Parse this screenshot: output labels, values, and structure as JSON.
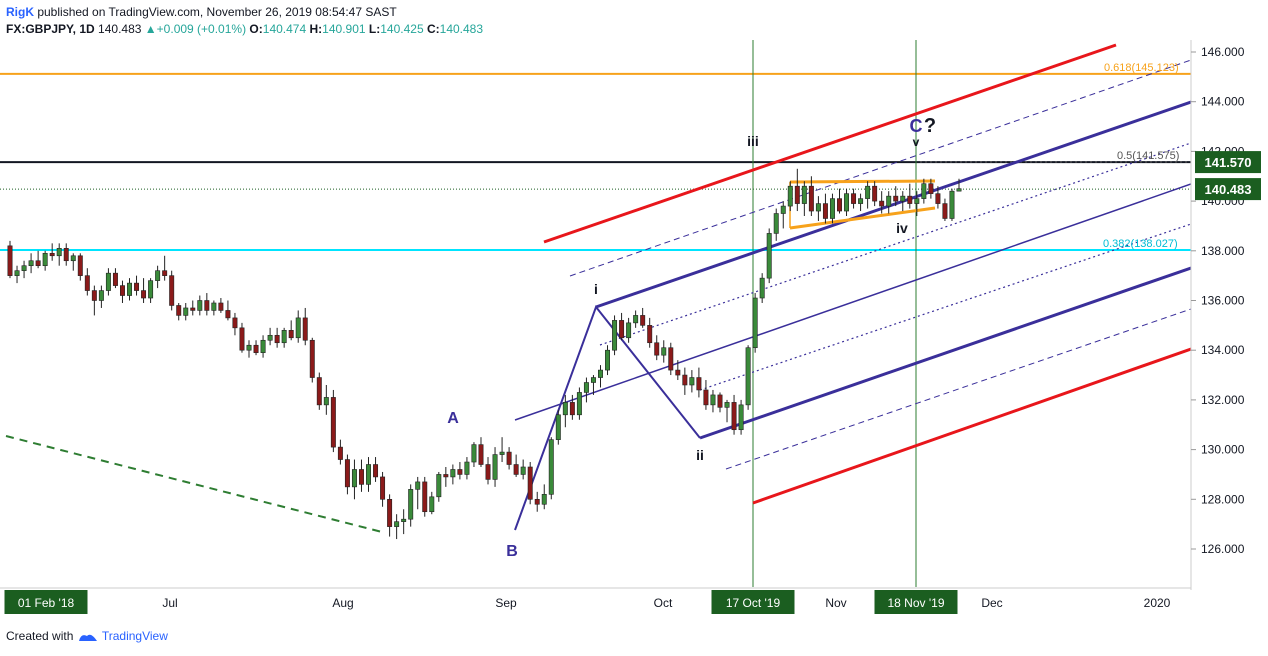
{
  "header": {
    "author": "RigK",
    "published": " published on TradingView.com, November 26, 2019 08:54:47 SAST",
    "symbol": "FX:GBPJPY, 1D",
    "last": "140.483",
    "change_arrow": "▲",
    "change": "+0.009 (+0.01%)",
    "o_label": "O:",
    "o": "140.474",
    "h_label": "H:",
    "h": "140.901",
    "l_label": "L:",
    "l": "140.425",
    "c_label": "C:",
    "c": "140.483"
  },
  "footer": {
    "created_with": "Created with",
    "brand": "TradingView"
  },
  "colors": {
    "bull": "#3a8a3a",
    "bear": "#8b1a1a",
    "channel_red": "#e8161b",
    "pitchfork": "#3a2f9a",
    "fib_orange": "#f7a21b",
    "fib_cyan": "#00e5ff",
    "vline_green": "#2e7d32",
    "last_price": "#1b5e20"
  },
  "chart_data": {
    "type": "candlestick",
    "symbol": "FX:GBPJPY",
    "timeframe": "1D",
    "ylim": [
      124.4,
      146.9
    ],
    "y_ticks": [
      126,
      128,
      130,
      132,
      134,
      136,
      138,
      140,
      142,
      144,
      146
    ],
    "y_tick_labels": [
      "126.000",
      "128.000",
      "130.000",
      "132.000",
      "134.000",
      "136.000",
      "138.000",
      "140.000",
      "142.000",
      "144.000",
      "146.000"
    ],
    "x_labels": [
      "01 Feb '18",
      "Jul",
      "Aug",
      "Sep",
      "Oct",
      "17 Oct '19",
      "Nov",
      "18 Nov '19",
      "Dec",
      "2020"
    ],
    "highlighted_x_labels": [
      "01 Feb '18",
      "17 Oct '19",
      "18 Nov '19"
    ],
    "price_labels": [
      {
        "text": "141.570",
        "value": 141.57,
        "style": "black-line"
      },
      {
        "text": "140.483",
        "value": 140.483,
        "style": "last-price"
      }
    ],
    "fib_levels": [
      {
        "label": "0.618(145.123)",
        "value": 145.12,
        "color": "orange"
      },
      {
        "label": "0.5(141.575)",
        "value": 141.575,
        "color": "black"
      },
      {
        "label": "0.382(138.027)",
        "value": 138.03,
        "color": "cyan"
      }
    ],
    "wave_labels": [
      "A",
      "B",
      "i",
      "ii",
      "iii",
      "iv",
      "C",
      "?",
      "v"
    ],
    "candles_ohlc": [
      [
        138.2,
        138.4,
        136.9,
        137.0
      ],
      [
        137.0,
        137.4,
        136.7,
        137.2
      ],
      [
        137.2,
        137.6,
        136.9,
        137.4
      ],
      [
        137.4,
        137.9,
        137.1,
        137.6
      ],
      [
        137.6,
        138.0,
        137.3,
        137.4
      ],
      [
        137.4,
        138.0,
        137.2,
        137.9
      ],
      [
        137.9,
        138.3,
        137.6,
        137.8
      ],
      [
        137.8,
        138.3,
        137.4,
        138.1
      ],
      [
        138.1,
        138.3,
        137.4,
        137.6
      ],
      [
        137.6,
        137.9,
        137.2,
        137.8
      ],
      [
        137.8,
        137.9,
        136.8,
        137.0
      ],
      [
        137.0,
        137.3,
        136.2,
        136.4
      ],
      [
        136.4,
        136.6,
        135.4,
        136.0
      ],
      [
        136.0,
        136.6,
        135.7,
        136.4
      ],
      [
        136.4,
        137.3,
        136.2,
        137.1
      ],
      [
        137.1,
        137.3,
        136.5,
        136.6
      ],
      [
        136.6,
        136.8,
        135.9,
        136.2
      ],
      [
        136.2,
        136.9,
        136.0,
        136.7
      ],
      [
        136.7,
        137.0,
        136.2,
        136.4
      ],
      [
        136.4,
        136.9,
        135.9,
        136.1
      ],
      [
        136.1,
        136.9,
        135.9,
        136.8
      ],
      [
        136.8,
        137.4,
        136.5,
        137.2
      ],
      [
        137.2,
        137.8,
        136.8,
        137.0
      ],
      [
        137.0,
        137.2,
        135.6,
        135.8
      ],
      [
        135.8,
        135.9,
        135.2,
        135.4
      ],
      [
        135.4,
        135.9,
        135.2,
        135.7
      ],
      [
        135.7,
        136.0,
        135.4,
        135.6
      ],
      [
        135.6,
        136.2,
        135.4,
        136.0
      ],
      [
        136.0,
        136.3,
        135.4,
        135.6
      ],
      [
        135.6,
        136.0,
        135.4,
        135.9
      ],
      [
        135.9,
        136.1,
        135.5,
        135.6
      ],
      [
        135.6,
        136.0,
        135.2,
        135.3
      ],
      [
        135.3,
        135.5,
        134.6,
        134.9
      ],
      [
        134.9,
        135.1,
        133.9,
        134.0
      ],
      [
        134.0,
        134.4,
        133.7,
        134.2
      ],
      [
        134.2,
        134.4,
        133.8,
        133.9
      ],
      [
        133.9,
        134.6,
        133.7,
        134.4
      ],
      [
        134.4,
        134.9,
        134.2,
        134.6
      ],
      [
        134.6,
        134.9,
        134.1,
        134.3
      ],
      [
        134.3,
        134.9,
        134.1,
        134.8
      ],
      [
        134.8,
        135.2,
        134.4,
        134.5
      ],
      [
        134.5,
        135.6,
        134.3,
        135.3
      ],
      [
        135.3,
        135.7,
        134.2,
        134.4
      ],
      [
        134.4,
        134.5,
        132.7,
        132.9
      ],
      [
        132.9,
        133.1,
        131.6,
        131.8
      ],
      [
        131.8,
        132.6,
        131.4,
        132.1
      ],
      [
        132.1,
        132.4,
        129.9,
        130.1
      ],
      [
        130.1,
        130.4,
        129.4,
        129.6
      ],
      [
        129.6,
        129.8,
        128.2,
        128.5
      ],
      [
        128.5,
        129.6,
        128.0,
        129.2
      ],
      [
        129.2,
        129.6,
        128.3,
        128.6
      ],
      [
        128.6,
        129.7,
        128.3,
        129.4
      ],
      [
        129.4,
        129.7,
        128.7,
        128.9
      ],
      [
        128.9,
        129.1,
        127.7,
        128.0
      ],
      [
        128.0,
        128.2,
        126.5,
        126.9
      ],
      [
        126.9,
        127.4,
        126.4,
        127.1
      ],
      [
        127.1,
        127.6,
        126.6,
        127.2
      ],
      [
        127.2,
        128.6,
        126.9,
        128.4
      ],
      [
        128.4,
        128.9,
        127.6,
        128.7
      ],
      [
        128.7,
        128.9,
        127.3,
        127.5
      ],
      [
        127.5,
        128.3,
        127.4,
        128.1
      ],
      [
        128.1,
        129.1,
        127.9,
        129.0
      ],
      [
        129.0,
        129.3,
        128.5,
        128.9
      ],
      [
        128.9,
        129.4,
        128.6,
        129.2
      ],
      [
        129.2,
        129.5,
        128.8,
        129.0
      ],
      [
        129.0,
        129.7,
        128.8,
        129.5
      ],
      [
        129.5,
        130.3,
        129.3,
        130.2
      ],
      [
        130.2,
        130.5,
        129.3,
        129.4
      ],
      [
        129.4,
        129.7,
        128.6,
        128.8
      ],
      [
        128.8,
        130.1,
        128.5,
        129.8
      ],
      [
        129.8,
        130.5,
        129.5,
        129.9
      ],
      [
        129.9,
        130.1,
        129.2,
        129.4
      ],
      [
        129.4,
        129.8,
        128.9,
        129.0
      ],
      [
        129.0,
        129.6,
        128.8,
        129.3
      ],
      [
        129.3,
        129.5,
        127.8,
        128.0
      ],
      [
        128.0,
        128.3,
        127.5,
        127.8
      ],
      [
        127.8,
        128.6,
        127.6,
        128.2
      ],
      [
        128.2,
        130.5,
        128.0,
        130.4
      ],
      [
        130.4,
        131.6,
        130.2,
        131.4
      ],
      [
        131.4,
        132.2,
        130.9,
        131.9
      ],
      [
        131.9,
        132.2,
        131.2,
        131.4
      ],
      [
        131.4,
        132.5,
        131.2,
        132.3
      ],
      [
        132.3,
        132.9,
        131.9,
        132.7
      ],
      [
        132.7,
        133.0,
        132.2,
        132.9
      ],
      [
        132.9,
        133.4,
        132.5,
        133.2
      ],
      [
        133.2,
        134.2,
        133.0,
        134.0
      ],
      [
        134.0,
        135.4,
        133.8,
        135.2
      ],
      [
        135.2,
        135.5,
        134.4,
        134.5
      ],
      [
        134.5,
        135.3,
        134.3,
        135.1
      ],
      [
        135.1,
        135.6,
        134.9,
        135.4
      ],
      [
        135.4,
        135.7,
        134.9,
        135.0
      ],
      [
        135.0,
        135.3,
        134.1,
        134.3
      ],
      [
        134.3,
        134.6,
        133.6,
        133.8
      ],
      [
        133.8,
        134.4,
        133.5,
        134.1
      ],
      [
        134.1,
        134.3,
        133.0,
        133.2
      ],
      [
        133.2,
        133.6,
        132.8,
        133.0
      ],
      [
        133.0,
        133.3,
        132.2,
        132.6
      ],
      [
        132.6,
        133.2,
        132.3,
        132.9
      ],
      [
        132.9,
        133.3,
        132.1,
        132.4
      ],
      [
        132.4,
        132.8,
        131.6,
        131.8
      ],
      [
        131.8,
        132.4,
        131.5,
        132.2
      ],
      [
        132.2,
        132.3,
        131.5,
        131.7
      ],
      [
        131.7,
        132.0,
        131.1,
        131.9
      ],
      [
        131.9,
        132.2,
        130.6,
        130.8
      ],
      [
        130.8,
        132.0,
        130.6,
        131.8
      ],
      [
        131.8,
        134.2,
        131.6,
        134.1
      ],
      [
        134.1,
        136.3,
        133.9,
        136.1
      ],
      [
        136.1,
        137.1,
        135.9,
        136.9
      ],
      [
        136.9,
        138.9,
        136.7,
        138.7
      ],
      [
        138.7,
        139.7,
        138.4,
        139.5
      ],
      [
        139.5,
        140.0,
        138.9,
        139.8
      ],
      [
        139.8,
        140.8,
        139.6,
        140.6
      ],
      [
        140.6,
        141.3,
        139.6,
        139.9
      ],
      [
        139.9,
        140.8,
        139.4,
        140.6
      ],
      [
        140.6,
        141.0,
        139.4,
        139.6
      ],
      [
        139.6,
        140.2,
        139.2,
        139.9
      ],
      [
        139.9,
        140.3,
        139.1,
        139.3
      ],
      [
        139.3,
        140.3,
        139.1,
        140.1
      ],
      [
        140.1,
        140.5,
        139.5,
        139.6
      ],
      [
        139.6,
        140.5,
        139.4,
        140.3
      ],
      [
        140.3,
        140.5,
        139.7,
        139.9
      ],
      [
        139.9,
        140.3,
        139.6,
        140.1
      ],
      [
        140.1,
        140.8,
        139.7,
        140.6
      ],
      [
        140.6,
        140.8,
        139.8,
        140.0
      ],
      [
        140.0,
        140.4,
        139.5,
        139.8
      ],
      [
        139.8,
        140.4,
        139.5,
        140.2
      ],
      [
        140.2,
        140.6,
        139.8,
        140.0
      ],
      [
        140.0,
        140.4,
        139.6,
        140.2
      ],
      [
        140.2,
        140.7,
        139.7,
        139.9
      ],
      [
        139.9,
        140.4,
        139.4,
        140.1
      ],
      [
        140.1,
        140.9,
        139.9,
        140.7
      ],
      [
        140.7,
        140.9,
        140.1,
        140.3
      ],
      [
        140.3,
        140.6,
        139.7,
        139.9
      ],
      [
        139.9,
        140.1,
        139.2,
        139.3
      ],
      [
        139.3,
        140.5,
        139.2,
        140.4
      ],
      [
        140.4,
        140.9,
        140.4,
        140.5
      ]
    ]
  }
}
